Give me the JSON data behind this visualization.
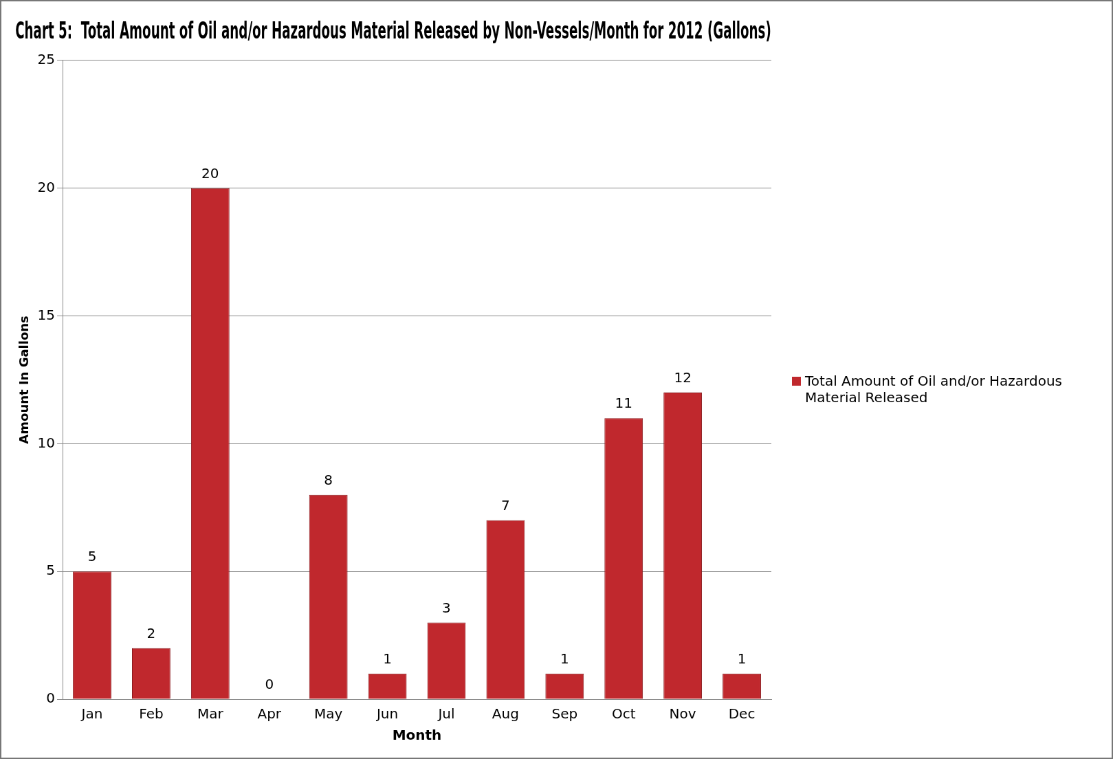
{
  "chart_data": {
    "type": "bar",
    "title": "Chart 5:  Total Amount of Oil and/or Hazardous Material Released by Non-Vessels/Month for 2012 (Gallons)",
    "xlabel": "Month",
    "ylabel": "Amount In Gallons",
    "categories": [
      "Jan",
      "Feb",
      "Mar",
      "Apr",
      "May",
      "Jun",
      "Jul",
      "Aug",
      "Sep",
      "Oct",
      "Nov",
      "Dec"
    ],
    "series": [
      {
        "name": "Total Amount of Oil and/or Hazardous Material Released",
        "color": "#c0282d",
        "values": [
          5,
          2,
          20,
          0,
          8,
          1,
          3,
          7,
          1,
          11,
          12,
          1
        ]
      }
    ],
    "ylim": [
      0,
      25
    ],
    "yticks": [
      0,
      5,
      10,
      15,
      20,
      25
    ],
    "grid": "y",
    "legend": "right",
    "data_labels": true
  }
}
